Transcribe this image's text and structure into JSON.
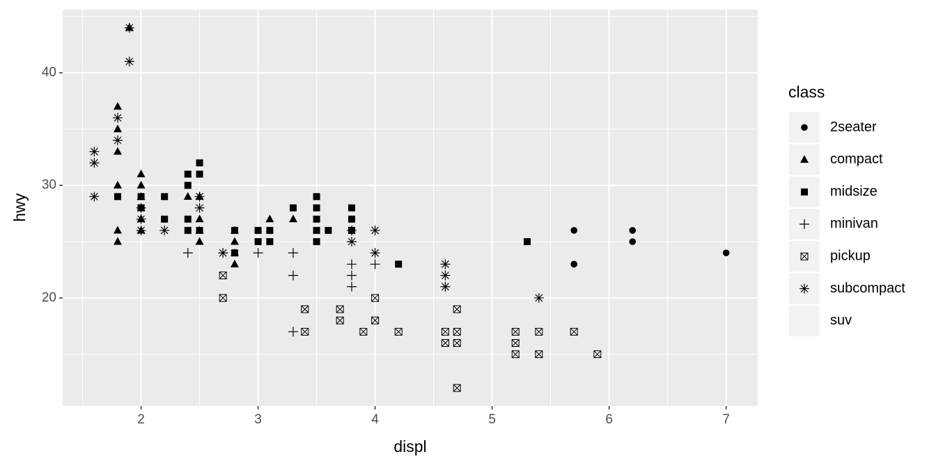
{
  "chart_data": {
    "type": "scatter",
    "x_label": "displ",
    "y_label": "hwy",
    "legend_title": "class",
    "xlim": [
      1.33,
      7.27
    ],
    "ylim": [
      10.4,
      45.6
    ],
    "xticks": [
      2,
      3,
      4,
      5,
      6,
      7
    ],
    "yticks": [
      20,
      30,
      40
    ],
    "xminor": [
      1.5,
      2.5,
      3.5,
      4.5,
      5.5,
      6.5
    ],
    "yminor": [
      15,
      25,
      35,
      45
    ],
    "grid": true,
    "legend": "right",
    "series": [
      {
        "name": "2seater",
        "shape": "circle",
        "color": "#000000",
        "x": [
          5.7,
          5.7,
          6.2,
          6.2,
          7
        ],
        "values": [
          26,
          23,
          26,
          25,
          24
        ]
      },
      {
        "name": "compact",
        "shape": "triangle",
        "color": "#000000",
        "x": [
          1.8,
          1.8,
          1.8,
          1.8,
          1.8,
          1.8,
          1.9,
          2,
          2,
          2,
          2,
          2,
          2,
          2.4,
          2.5,
          2.5,
          2.5,
          2.5,
          2.8,
          2.8,
          2.8,
          2.8,
          3.1,
          3.3
        ],
        "values": [
          37,
          35,
          33,
          30,
          26,
          25,
          44,
          31,
          30,
          29,
          28,
          27,
          26,
          29,
          29,
          27,
          26,
          25,
          26,
          25,
          24,
          23,
          27,
          27
        ]
      },
      {
        "name": "midsize",
        "shape": "square",
        "color": "#000000",
        "x": [
          1.8,
          2,
          2,
          2.2,
          2.2,
          2.4,
          2.4,
          2.4,
          2.4,
          2.5,
          2.5,
          2.5,
          2.8,
          2.8,
          3,
          3,
          3.1,
          3.1,
          3.3,
          3.5,
          3.5,
          3.5,
          3.5,
          3.5,
          3.6,
          3.8,
          3.8,
          3.8,
          4.2,
          5.3
        ],
        "values": [
          29,
          28,
          29,
          29,
          27,
          31,
          30,
          27,
          26,
          32,
          31,
          26,
          26,
          24,
          26,
          25,
          26,
          25,
          28,
          29,
          28,
          27,
          26,
          25,
          26,
          28,
          27,
          26,
          23,
          25
        ]
      },
      {
        "name": "minivan",
        "shape": "plus",
        "color": "#000000",
        "x": [
          2.4,
          3,
          3.3,
          3.3,
          3.3,
          3.8,
          3.8,
          3.8,
          4
        ],
        "values": [
          24,
          24,
          24,
          22,
          17,
          23,
          22,
          21,
          23
        ]
      },
      {
        "name": "pickup",
        "shape": "boxx",
        "color": "#000000",
        "x": [
          2.7,
          2.7,
          3.4,
          3.4,
          3.7,
          3.7,
          3.9,
          4,
          4,
          4.2,
          4.6,
          4.6,
          4.7,
          4.7,
          4.7,
          4.7,
          5.2,
          5.2,
          5.2,
          5.4,
          5.4,
          5.7,
          5.9
        ],
        "values": [
          22,
          20,
          19,
          17,
          19,
          18,
          17,
          20,
          18,
          17,
          17,
          16,
          19,
          17,
          16,
          12,
          17,
          16,
          15,
          17,
          15,
          17,
          15
        ]
      },
      {
        "name": "subcompact",
        "shape": "asterisk",
        "color": "#000000",
        "x": [
          1.6,
          1.6,
          1.6,
          1.8,
          1.8,
          1.9,
          1.9,
          2,
          2,
          2,
          2.2,
          2.5,
          2.5,
          2.7,
          3.8,
          3.8,
          4,
          4,
          4.6,
          4.6,
          4.6,
          5.4
        ],
        "values": [
          33,
          32,
          29,
          36,
          34,
          44,
          41,
          26,
          27,
          28,
          26,
          29,
          28,
          24,
          26,
          25,
          26,
          24,
          23,
          22,
          21,
          20
        ]
      },
      {
        "name": "suv",
        "shape": null,
        "color": "#000000",
        "x": [],
        "values": []
      }
    ]
  }
}
